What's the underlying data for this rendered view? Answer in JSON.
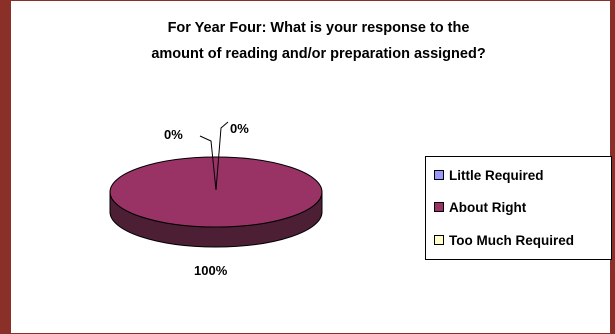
{
  "chart_data": {
    "type": "pie",
    "title": "For Year Four: What is your response to the amount of reading and/or preparation assigned?",
    "title_lines": [
      "For Year Four: What is your response to the",
      "amount of reading and/or preparation assigned?"
    ],
    "slices": [
      {
        "name": "Little Required",
        "value": 0,
        "label": "0%",
        "color": "#9999ff"
      },
      {
        "name": "About Right",
        "value": 100,
        "label": "100%",
        "color": "#993366"
      },
      {
        "name": "Too Much Required",
        "value": 0,
        "label": "0%",
        "color": "#ffffcc"
      }
    ],
    "legend_position": "right",
    "style": "3d-pie"
  }
}
